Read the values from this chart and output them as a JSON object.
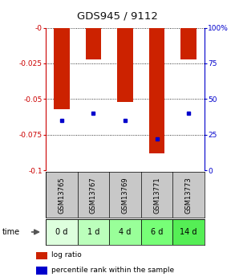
{
  "title": "GDS945 / 9112",
  "samples": [
    "GSM13765",
    "GSM13767",
    "GSM13769",
    "GSM13771",
    "GSM13773"
  ],
  "timepoints": [
    "0 d",
    "1 d",
    "4 d",
    "6 d",
    "14 d"
  ],
  "log_ratios": [
    -0.057,
    -0.022,
    -0.052,
    -0.088,
    -0.022
  ],
  "percentile_ranks": [
    0.35,
    0.4,
    0.35,
    0.22,
    0.4
  ],
  "ylim_left": [
    -0.1,
    0.0
  ],
  "ylim_right": [
    0.0,
    1.0
  ],
  "yticks_left": [
    -0.1,
    -0.075,
    -0.05,
    -0.025,
    0.0
  ],
  "ytick_labels_left": [
    "-0.1",
    "-0.075",
    "-0.05",
    "-0.025",
    "-0"
  ],
  "yticks_right": [
    0.0,
    0.25,
    0.5,
    0.75,
    1.0
  ],
  "ytick_labels_right": [
    "0",
    "25",
    "50",
    "75",
    "100%"
  ],
  "bar_color": "#cc2200",
  "percentile_color": "#0000cc",
  "bar_width": 0.5,
  "grid_color": "#888888",
  "bg_plot": "#ffffff",
  "bg_gsm": "#c8c8c8",
  "time_colors": [
    "#ddffdd",
    "#bbffbb",
    "#99ff99",
    "#77ff77",
    "#55ee55"
  ],
  "legend_log_ratio": "log ratio",
  "legend_percentile": "percentile rank within the sample",
  "title_color": "#111111",
  "left_axis_color": "#cc0000",
  "right_axis_color": "#0000cc"
}
